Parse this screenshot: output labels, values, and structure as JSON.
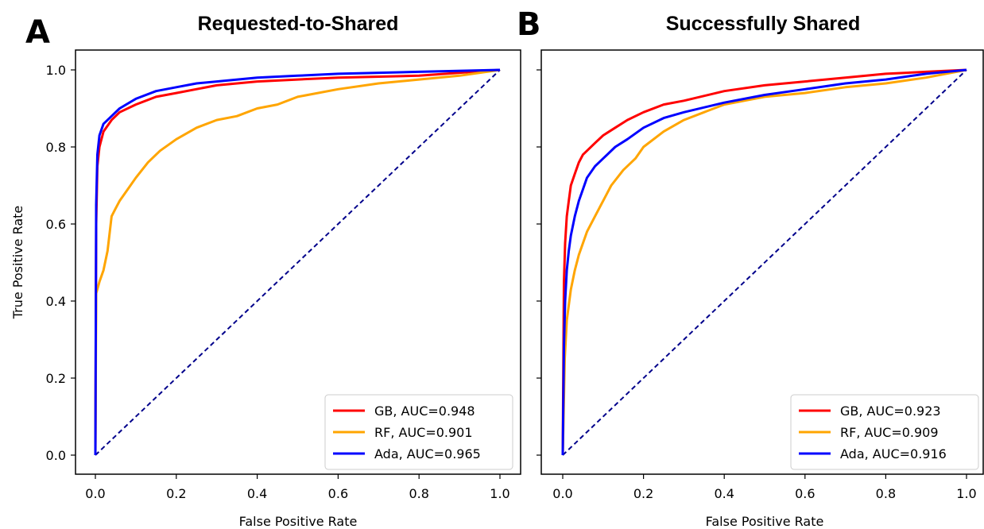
{
  "panels": [
    {
      "letter": "A",
      "title": "Requested-to-Shared"
    },
    {
      "letter": "B",
      "title": "Successfully Shared"
    }
  ],
  "chart_data": [
    {
      "type": "line",
      "title": "Requested-to-Shared",
      "xlabel": "False Positive Rate",
      "ylabel": "True Positive Rate",
      "xlim": [
        0.0,
        1.0
      ],
      "ylim": [
        0.0,
        1.0
      ],
      "xticks": [
        "0.0",
        "0.2",
        "0.4",
        "0.6",
        "0.8",
        "1.0"
      ],
      "yticks": [
        "0.0",
        "0.2",
        "0.4",
        "0.6",
        "0.8",
        "1.0"
      ],
      "legend_position": "lower-right",
      "grid": false,
      "reference_line": {
        "x": [
          0,
          1
        ],
        "y": [
          0,
          1
        ],
        "color": "#00008b",
        "style": "dashed"
      },
      "series": [
        {
          "name": "GB, AUC=0.948",
          "color": "#ff0000",
          "x": [
            0,
            0.002,
            0.005,
            0.01,
            0.02,
            0.04,
            0.06,
            0.1,
            0.15,
            0.2,
            0.3,
            0.4,
            0.5,
            0.6,
            0.8,
            1.0
          ],
          "y": [
            0,
            0.6,
            0.75,
            0.8,
            0.84,
            0.87,
            0.89,
            0.91,
            0.93,
            0.94,
            0.96,
            0.97,
            0.975,
            0.98,
            0.985,
            1.0
          ]
        },
        {
          "name": "RF, AUC=0.901",
          "color": "#ffa500",
          "x": [
            0,
            0.002,
            0.01,
            0.02,
            0.03,
            0.04,
            0.05,
            0.06,
            0.08,
            0.1,
            0.13,
            0.16,
            0.2,
            0.25,
            0.3,
            0.35,
            0.4,
            0.45,
            0.5,
            0.6,
            0.7,
            0.8,
            0.9,
            1.0
          ],
          "y": [
            0,
            0.42,
            0.45,
            0.48,
            0.53,
            0.62,
            0.64,
            0.66,
            0.69,
            0.72,
            0.76,
            0.79,
            0.82,
            0.85,
            0.87,
            0.88,
            0.9,
            0.91,
            0.93,
            0.95,
            0.965,
            0.975,
            0.985,
            1.0
          ]
        },
        {
          "name": "Ada, AUC=0.965",
          "color": "#0000ff",
          "x": [
            0,
            0.002,
            0.005,
            0.01,
            0.02,
            0.04,
            0.06,
            0.1,
            0.15,
            0.2,
            0.25,
            0.3,
            0.4,
            0.5,
            0.6,
            0.8,
            1.0
          ],
          "y": [
            0,
            0.65,
            0.78,
            0.83,
            0.86,
            0.88,
            0.9,
            0.925,
            0.945,
            0.955,
            0.965,
            0.97,
            0.98,
            0.985,
            0.99,
            0.995,
            1.0
          ]
        }
      ]
    },
    {
      "type": "line",
      "title": "Successfully Shared",
      "xlabel": "False Positive Rate",
      "ylabel": "",
      "xlim": [
        0.0,
        1.0
      ],
      "ylim": [
        0.0,
        1.0
      ],
      "xticks": [
        "0.0",
        "0.2",
        "0.4",
        "0.6",
        "0.8",
        "1.0"
      ],
      "yticks": [],
      "legend_position": "lower-right",
      "grid": false,
      "reference_line": {
        "x": [
          0,
          1
        ],
        "y": [
          0,
          1
        ],
        "color": "#00008b",
        "style": "dashed"
      },
      "series": [
        {
          "name": "GB, AUC=0.923",
          "color": "#ff0000",
          "x": [
            0,
            0.003,
            0.006,
            0.01,
            0.015,
            0.02,
            0.03,
            0.04,
            0.05,
            0.06,
            0.08,
            0.1,
            0.13,
            0.16,
            0.2,
            0.25,
            0.3,
            0.4,
            0.5,
            0.6,
            0.7,
            0.8,
            0.9,
            1.0
          ],
          "y": [
            0,
            0.45,
            0.55,
            0.62,
            0.66,
            0.7,
            0.73,
            0.76,
            0.78,
            0.79,
            0.81,
            0.83,
            0.85,
            0.87,
            0.89,
            0.91,
            0.92,
            0.945,
            0.96,
            0.97,
            0.98,
            0.99,
            0.995,
            1.0
          ]
        },
        {
          "name": "RF, AUC=0.909",
          "color": "#ffa500",
          "x": [
            0,
            0.005,
            0.01,
            0.02,
            0.03,
            0.04,
            0.05,
            0.06,
            0.08,
            0.1,
            0.12,
            0.15,
            0.18,
            0.2,
            0.25,
            0.3,
            0.35,
            0.4,
            0.5,
            0.6,
            0.7,
            0.8,
            0.9,
            1.0
          ],
          "y": [
            0,
            0.25,
            0.35,
            0.43,
            0.48,
            0.52,
            0.55,
            0.58,
            0.62,
            0.66,
            0.7,
            0.74,
            0.77,
            0.8,
            0.84,
            0.87,
            0.89,
            0.91,
            0.93,
            0.94,
            0.955,
            0.965,
            0.98,
            1.0
          ]
        },
        {
          "name": "Ada, AUC=0.916",
          "color": "#0000ff",
          "x": [
            0,
            0.003,
            0.006,
            0.01,
            0.015,
            0.02,
            0.03,
            0.04,
            0.05,
            0.06,
            0.08,
            0.1,
            0.13,
            0.16,
            0.2,
            0.25,
            0.3,
            0.4,
            0.5,
            0.6,
            0.7,
            0.8,
            0.9,
            1.0
          ],
          "y": [
            0,
            0.28,
            0.4,
            0.48,
            0.53,
            0.57,
            0.62,
            0.66,
            0.69,
            0.72,
            0.75,
            0.77,
            0.8,
            0.82,
            0.85,
            0.875,
            0.89,
            0.915,
            0.935,
            0.95,
            0.965,
            0.975,
            0.99,
            1.0
          ]
        }
      ]
    }
  ]
}
